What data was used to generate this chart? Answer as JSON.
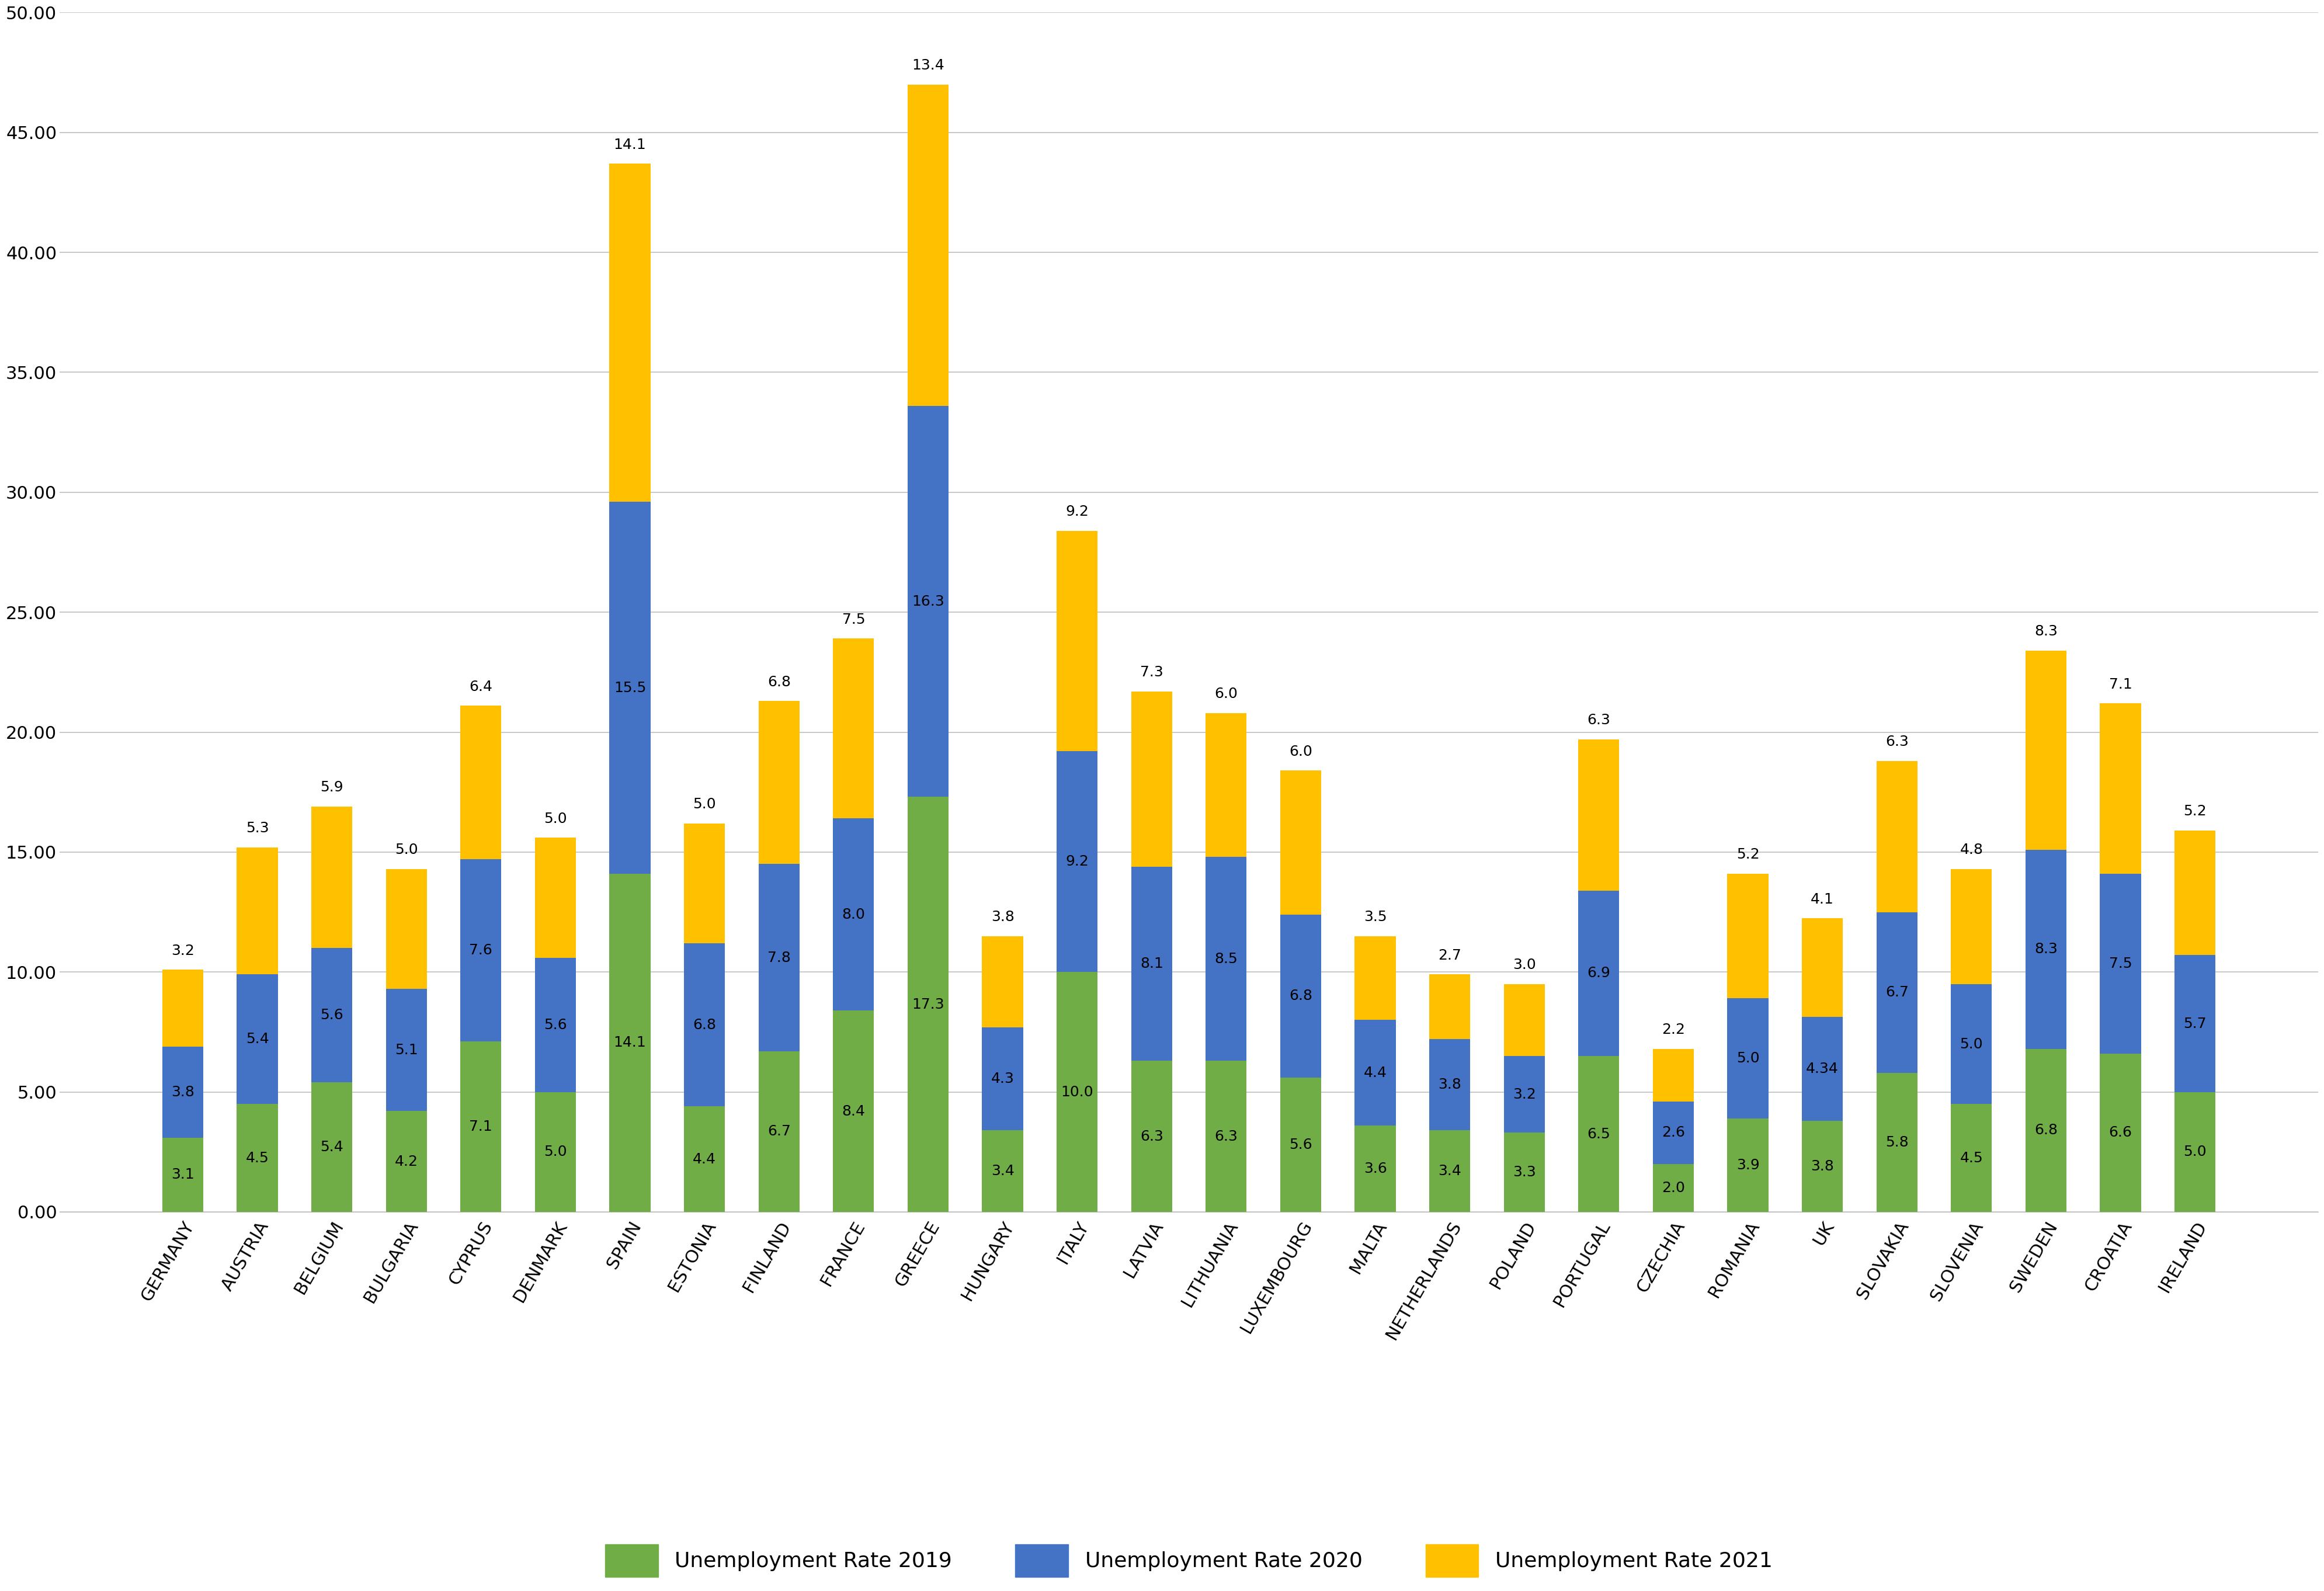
{
  "categories": [
    "GERMANY",
    "AUSTRIA",
    "BELGIUM",
    "BULGARIA",
    "CYPRUS",
    "DENMARK",
    "SPAIN",
    "ESTONIA",
    "FINLAND",
    "FRANCE",
    "GREECE",
    "HUNGARY",
    "ITALY",
    "LATVIA",
    "LITHUANIA",
    "LUXEMBOURG",
    "MALTA",
    "NETHERLANDS",
    "POLAND",
    "PORTUGAL",
    "CZECHIA",
    "ROMANIA",
    "UK",
    "SLOVAKIA",
    "SLOVENIA",
    "SWEDEN",
    "CROATIA",
    "IRELAND"
  ],
  "rate_2019": [
    3.1,
    4.5,
    5.4,
    4.2,
    7.1,
    5.0,
    14.1,
    4.4,
    6.7,
    8.4,
    17.3,
    3.4,
    10.0,
    6.3,
    6.3,
    5.6,
    3.6,
    3.4,
    3.3,
    6.5,
    2.0,
    3.9,
    3.8,
    5.8,
    4.5,
    6.8,
    6.6,
    5.0
  ],
  "rate_2020": [
    3.8,
    5.4,
    5.6,
    5.1,
    7.6,
    5.6,
    15.5,
    6.8,
    7.8,
    8.0,
    16.3,
    4.3,
    9.2,
    8.1,
    8.5,
    6.8,
    4.4,
    3.8,
    3.2,
    6.9,
    2.6,
    5.0,
    4.34,
    6.7,
    5.0,
    8.3,
    7.5,
    5.7
  ],
  "rate_2021": [
    3.2,
    5.3,
    5.9,
    5.0,
    6.4,
    5.0,
    14.1,
    5.0,
    6.8,
    7.5,
    13.4,
    3.8,
    9.2,
    7.3,
    6.0,
    6.0,
    3.5,
    2.7,
    3.0,
    6.3,
    2.2,
    5.2,
    4.1,
    6.3,
    4.8,
    8.3,
    7.1,
    5.2
  ],
  "color_2019": "#70ad47",
  "color_2020": "#4472c4",
  "color_2021": "#ffc000",
  "background_color": "#ffffff",
  "grid_color": "#bfbfbf",
  "ylim": [
    0,
    50
  ],
  "yticks": [
    0.0,
    5.0,
    10.0,
    15.0,
    20.0,
    25.0,
    30.0,
    35.0,
    40.0,
    45.0,
    50.0
  ],
  "legend_labels": [
    "Unemployment Rate 2019",
    "Unemployment Rate 2020",
    "Unemployment Rate 2021"
  ],
  "bar_width": 0.55,
  "tick_fontsize": 22,
  "legend_fontsize": 26,
  "value_fontsize": 18
}
